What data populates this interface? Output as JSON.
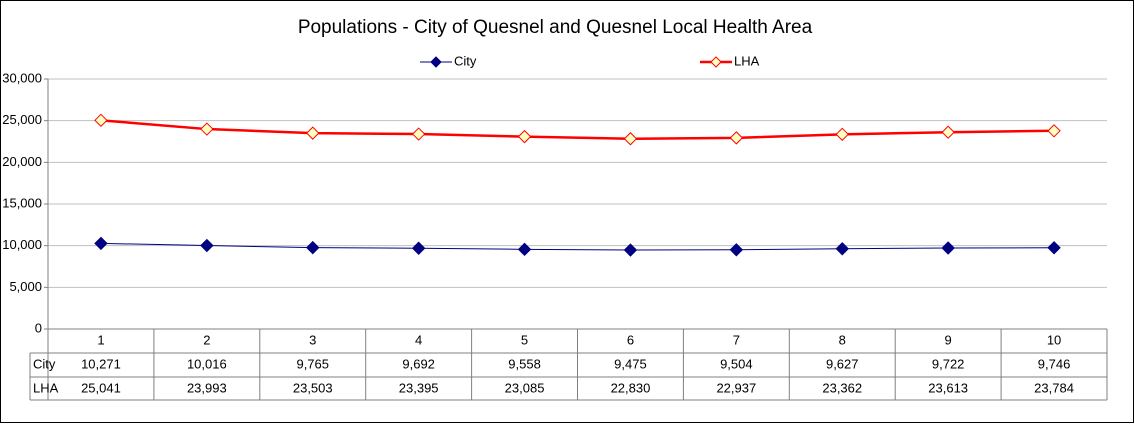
{
  "chart_data": {
    "type": "line",
    "title": "Populations -  City of Quesnel and Quesnel Local Health Area",
    "categories": [
      "1",
      "2",
      "3",
      "4",
      "5",
      "6",
      "7",
      "8",
      "9",
      "10"
    ],
    "series": [
      {
        "name": "City",
        "color": "#000080",
        "marker_fill": "#000080",
        "values": [
          10271,
          10016,
          9765,
          9692,
          9558,
          9475,
          9504,
          9627,
          9722,
          9746
        ],
        "value_labels": [
          "10,271",
          "10,016",
          "9,765",
          "9,692",
          "9,558",
          "9,475",
          "9,504",
          "9,627",
          "9,722",
          "9,746"
        ]
      },
      {
        "name": "LHA",
        "color": "#ff0000",
        "marker_fill": "#ffffc0",
        "values": [
          25041,
          23993,
          23503,
          23395,
          23085,
          22830,
          22937,
          23362,
          23613,
          23784
        ],
        "value_labels": [
          "25,041",
          "23,993",
          "23,503",
          "23,395",
          "23,085",
          "22,830",
          "22,937",
          "23,362",
          "23,613",
          "23,784"
        ]
      }
    ],
    "ylim": [
      0,
      30000
    ],
    "yticks": [
      0,
      {
        "value": 5000,
        "label": "5,000"
      },
      {
        "value": 10000,
        "label": "10,000"
      },
      {
        "value": 15000,
        "label": "15,000"
      },
      {
        "value": 20000,
        "label": "20,000"
      },
      {
        "value": 25000,
        "label": "25,000"
      },
      {
        "value": 30000,
        "label": "30,000"
      }
    ],
    "grid": true,
    "legend": "top"
  }
}
